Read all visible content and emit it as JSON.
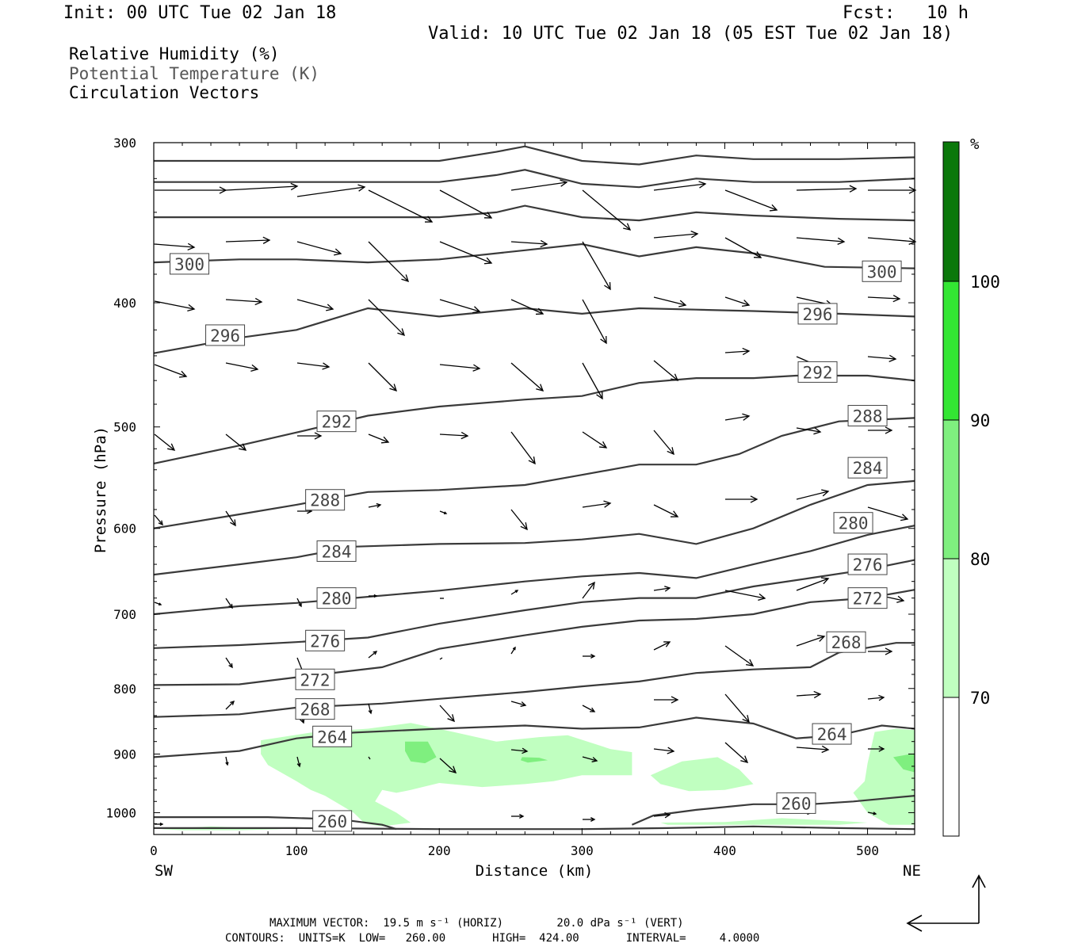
{
  "header": {
    "init": "Init: 00 UTC Tue 02 Jan 18",
    "fcst": "Fcst:   10 h",
    "valid": "Valid: 10 UTC Tue 02 Jan 18 (05 EST Tue 02 Jan 18)"
  },
  "legend": {
    "rh": "Relative Humidity (%)",
    "theta": "Potential Temperature (K)",
    "vectors": "Circulation Vectors"
  },
  "footer": {
    "max_vector_line": "MAXIMUM VECTOR:  19.5 m s⁻¹ (HORIZ)        20.0 dPa s⁻¹ (VERT)",
    "contours_line": "CONTOURS:  UNITS=K  LOW=   260.00       HIGH=  424.00       INTERVAL=     4.0000"
  },
  "colorbar": {
    "unit": "%",
    "levels": [
      70,
      80,
      90,
      100
    ],
    "colors": [
      "#ffffff",
      "#c0ffc0",
      "#7fef7f",
      "#33e633",
      "#10b410",
      "#0a780a"
    ]
  },
  "chart_data": {
    "type": "cross-section contour",
    "xlabel": "Distance (km)",
    "ylabel": "Pressure (hPa)",
    "x_ticks": [
      0,
      100,
      200,
      300,
      400,
      500
    ],
    "y_ticks": [
      300,
      400,
      500,
      600,
      700,
      800,
      900,
      1000
    ],
    "xlim": [
      0,
      533
    ],
    "ylim": [
      300,
      1040
    ],
    "y_scale": "log-pressure (inverted)",
    "left_end_label": "SW",
    "right_end_label": "NE",
    "theta_contour_labels": [
      {
        "label": "300",
        "x": 25,
        "p": 373
      },
      {
        "label": "300",
        "x": 510,
        "p": 378
      },
      {
        "label": "296",
        "x": 50,
        "p": 424
      },
      {
        "label": "296",
        "x": 465,
        "p": 408
      },
      {
        "label": "292",
        "x": 128,
        "p": 495
      },
      {
        "label": "292",
        "x": 465,
        "p": 453
      },
      {
        "label": "288",
        "x": 500,
        "p": 490
      },
      {
        "label": "288",
        "x": 120,
        "p": 570
      },
      {
        "label": "284",
        "x": 500,
        "p": 538
      },
      {
        "label": "284",
        "x": 128,
        "p": 625
      },
      {
        "label": "280",
        "x": 490,
        "p": 594
      },
      {
        "label": "280",
        "x": 128,
        "p": 680
      },
      {
        "label": "276",
        "x": 500,
        "p": 640
      },
      {
        "label": "276",
        "x": 120,
        "p": 734
      },
      {
        "label": "272",
        "x": 500,
        "p": 680
      },
      {
        "label": "272",
        "x": 113,
        "p": 787
      },
      {
        "label": "268",
        "x": 485,
        "p": 736
      },
      {
        "label": "268",
        "x": 113,
        "p": 830
      },
      {
        "label": "264",
        "x": 125,
        "p": 872
      },
      {
        "label": "264",
        "x": 475,
        "p": 868
      },
      {
        "label": "260",
        "x": 450,
        "p": 983
      },
      {
        "label": "260",
        "x": 125,
        "p": 1015
      }
    ],
    "theta_contours": [
      {
        "theta": 260,
        "points": [
          [
            0,
            1028
          ],
          [
            100,
            1028
          ],
          [
            200,
            1030
          ],
          [
            300,
            1030
          ],
          [
            360,
            1028
          ],
          [
            420,
            1025
          ],
          [
            480,
            1028
          ],
          [
            533,
            1030
          ]
        ]
      },
      {
        "theta": 260,
        "points": [
          [
            0,
            1008
          ],
          [
            80,
            1008
          ],
          [
            130,
            1012
          ],
          [
            160,
            1022
          ],
          [
            170,
            1030
          ]
        ]
      },
      {
        "theta": 260,
        "points": [
          [
            335,
            1022
          ],
          [
            350,
            1005
          ],
          [
            380,
            995
          ],
          [
            420,
            985
          ],
          [
            460,
            985
          ],
          [
            490,
            980
          ],
          [
            533,
            970
          ]
        ]
      },
      {
        "theta": 264,
        "points": [
          [
            0,
            905
          ],
          [
            60,
            895
          ],
          [
            100,
            875
          ],
          [
            140,
            866
          ],
          [
            200,
            860
          ],
          [
            260,
            855
          ],
          [
            300,
            860
          ],
          [
            340,
            858
          ],
          [
            380,
            843
          ],
          [
            420,
            852
          ],
          [
            450,
            875
          ],
          [
            480,
            870
          ],
          [
            510,
            855
          ],
          [
            533,
            860
          ]
        ]
      },
      {
        "theta": 268,
        "points": [
          [
            0,
            842
          ],
          [
            60,
            838
          ],
          [
            100,
            828
          ],
          [
            160,
            822
          ],
          [
            200,
            815
          ],
          [
            260,
            805
          ],
          [
            300,
            797
          ],
          [
            340,
            790
          ],
          [
            380,
            778
          ],
          [
            420,
            773
          ],
          [
            460,
            770
          ],
          [
            480,
            750
          ],
          [
            520,
            737
          ],
          [
            533,
            737
          ]
        ]
      },
      {
        "theta": 272,
        "points": [
          [
            0,
            795
          ],
          [
            60,
            794
          ],
          [
            100,
            784
          ],
          [
            160,
            770
          ],
          [
            200,
            745
          ],
          [
            260,
            727
          ],
          [
            300,
            716
          ],
          [
            340,
            708
          ],
          [
            380,
            706
          ],
          [
            420,
            700
          ],
          [
            460,
            685
          ],
          [
            500,
            680
          ],
          [
            533,
            670
          ]
        ]
      },
      {
        "theta": 276,
        "points": [
          [
            0,
            744
          ],
          [
            60,
            740
          ],
          [
            100,
            736
          ],
          [
            150,
            730
          ],
          [
            200,
            712
          ],
          [
            260,
            695
          ],
          [
            300,
            685
          ],
          [
            340,
            680
          ],
          [
            380,
            680
          ],
          [
            420,
            666
          ],
          [
            460,
            656
          ],
          [
            500,
            646
          ],
          [
            533,
            635
          ]
        ]
      },
      {
        "theta": 280,
        "points": [
          [
            0,
            700
          ],
          [
            60,
            690
          ],
          [
            100,
            686
          ],
          [
            140,
            680
          ],
          [
            200,
            671
          ],
          [
            260,
            660
          ],
          [
            300,
            654
          ],
          [
            340,
            650
          ],
          [
            380,
            656
          ],
          [
            420,
            640
          ],
          [
            460,
            625
          ],
          [
            500,
            607
          ],
          [
            533,
            597
          ]
        ]
      },
      {
        "theta": 284,
        "points": [
          [
            0,
            652
          ],
          [
            60,
            640
          ],
          [
            100,
            632
          ],
          [
            140,
            620
          ],
          [
            200,
            617
          ],
          [
            260,
            616
          ],
          [
            300,
            612
          ],
          [
            340,
            606
          ],
          [
            380,
            617
          ],
          [
            420,
            600
          ],
          [
            460,
            575
          ],
          [
            500,
            555
          ],
          [
            533,
            551
          ]
        ]
      },
      {
        "theta": 288,
        "points": [
          [
            0,
            600
          ],
          [
            60,
            585
          ],
          [
            100,
            575
          ],
          [
            150,
            562
          ],
          [
            200,
            560
          ],
          [
            260,
            555
          ],
          [
            300,
            545
          ],
          [
            340,
            535
          ],
          [
            380,
            535
          ],
          [
            410,
            525
          ],
          [
            440,
            508
          ],
          [
            480,
            495
          ],
          [
            533,
            492
          ]
        ]
      },
      {
        "theta": 292,
        "points": [
          [
            0,
            534
          ],
          [
            60,
            517
          ],
          [
            100,
            505
          ],
          [
            150,
            490
          ],
          [
            200,
            482
          ],
          [
            260,
            476
          ],
          [
            300,
            473
          ],
          [
            340,
            462
          ],
          [
            380,
            458
          ],
          [
            420,
            458
          ],
          [
            450,
            456
          ],
          [
            500,
            456
          ],
          [
            533,
            460
          ]
        ]
      },
      {
        "theta": 296,
        "points": [
          [
            0,
            438
          ],
          [
            60,
            426
          ],
          [
            100,
            420
          ],
          [
            150,
            404
          ],
          [
            200,
            410
          ],
          [
            260,
            404
          ],
          [
            300,
            408
          ],
          [
            340,
            404
          ],
          [
            380,
            405
          ],
          [
            420,
            406
          ],
          [
            480,
            408
          ],
          [
            533,
            410
          ]
        ]
      },
      {
        "theta": 300,
        "points": [
          [
            0,
            372
          ],
          [
            60,
            370
          ],
          [
            100,
            370
          ],
          [
            150,
            372
          ],
          [
            200,
            370
          ],
          [
            260,
            364
          ],
          [
            300,
            360
          ],
          [
            340,
            368
          ],
          [
            380,
            362
          ],
          [
            420,
            366
          ],
          [
            470,
            375
          ],
          [
            533,
            376
          ]
        ]
      },
      {
        "theta": 304,
        "points": [
          [
            0,
            343
          ],
          [
            80,
            343
          ],
          [
            140,
            343
          ],
          [
            200,
            343
          ],
          [
            240,
            340
          ],
          [
            260,
            336
          ],
          [
            300,
            343
          ],
          [
            340,
            345
          ],
          [
            380,
            340
          ],
          [
            420,
            342
          ],
          [
            480,
            344
          ],
          [
            533,
            345
          ]
        ]
      },
      {
        "theta": 308,
        "points": [
          [
            0,
            322
          ],
          [
            80,
            322
          ],
          [
            150,
            322
          ],
          [
            200,
            322
          ],
          [
            240,
            318
          ],
          [
            260,
            315
          ],
          [
            300,
            323
          ],
          [
            340,
            325
          ],
          [
            380,
            320
          ],
          [
            420,
            322
          ],
          [
            480,
            322
          ],
          [
            533,
            320
          ]
        ]
      },
      {
        "theta": 312,
        "points": [
          [
            0,
            310
          ],
          [
            80,
            310
          ],
          [
            150,
            310
          ],
          [
            200,
            310
          ],
          [
            240,
            305
          ],
          [
            260,
            302
          ],
          [
            300,
            310
          ],
          [
            340,
            312
          ],
          [
            380,
            307
          ],
          [
            420,
            309
          ],
          [
            480,
            309
          ],
          [
            533,
            308
          ]
        ]
      }
    ],
    "rh_regions": [
      {
        "level": 70,
        "points": [
          [
            75,
            878
          ],
          [
            110,
            866
          ],
          [
            150,
            860
          ],
          [
            180,
            851
          ],
          [
            210,
            865
          ],
          [
            240,
            880
          ],
          [
            270,
            873
          ],
          [
            290,
            870
          ],
          [
            320,
            892
          ],
          [
            335,
            897
          ],
          [
            335,
            935
          ],
          [
            300,
            935
          ],
          [
            280,
            945
          ],
          [
            260,
            950
          ],
          [
            230,
            955
          ],
          [
            200,
            948
          ],
          [
            180,
            960
          ],
          [
            170,
            965
          ],
          [
            160,
            960
          ],
          [
            155,
            980
          ],
          [
            170,
            1000
          ],
          [
            180,
            1018
          ],
          [
            160,
            1025
          ],
          [
            148,
            1020
          ],
          [
            140,
            1000
          ],
          [
            120,
            970
          ],
          [
            110,
            960
          ],
          [
            100,
            945
          ],
          [
            80,
            918
          ],
          [
            75,
            900
          ]
        ]
      },
      {
        "level": 70,
        "points": [
          [
            348,
            935
          ],
          [
            370,
            912
          ],
          [
            395,
            905
          ],
          [
            410,
            925
          ],
          [
            420,
            950
          ],
          [
            400,
            960
          ],
          [
            375,
            962
          ],
          [
            355,
            950
          ]
        ]
      },
      {
        "level": 70,
        "points": [
          [
            505,
            865
          ],
          [
            520,
            860
          ],
          [
            533,
            862
          ],
          [
            533,
            1022
          ],
          [
            515,
            1022
          ],
          [
            500,
            1000
          ],
          [
            490,
            965
          ],
          [
            498,
            945
          ],
          [
            500,
            915
          ]
        ]
      },
      {
        "level": 70,
        "points": [
          [
            5,
            1030
          ],
          [
            40,
            1025
          ],
          [
            70,
            1028
          ],
          [
            90,
            1030
          ],
          [
            60,
            1032
          ],
          [
            20,
            1032
          ]
        ]
      },
      {
        "level": 70,
        "points": [
          [
            355,
            1018
          ],
          [
            400,
            1017
          ],
          [
            440,
            1010
          ],
          [
            480,
            1015
          ],
          [
            500,
            1018
          ],
          [
            480,
            1022
          ],
          [
            420,
            1022
          ],
          [
            360,
            1022
          ]
        ]
      },
      {
        "level": 80,
        "points": [
          [
            176,
            880
          ],
          [
            192,
            880
          ],
          [
            198,
            905
          ],
          [
            190,
            915
          ],
          [
            180,
            912
          ],
          [
            176,
            895
          ]
        ]
      },
      {
        "level": 80,
        "points": [
          [
            258,
            905
          ],
          [
            270,
            906
          ],
          [
            276,
            910
          ],
          [
            262,
            914
          ],
          [
            257,
            910
          ]
        ]
      },
      {
        "level": 80,
        "points": [
          [
            518,
            905
          ],
          [
            530,
            900
          ],
          [
            533,
            900
          ],
          [
            533,
            930
          ],
          [
            525,
            925
          ]
        ]
      }
    ]
  }
}
